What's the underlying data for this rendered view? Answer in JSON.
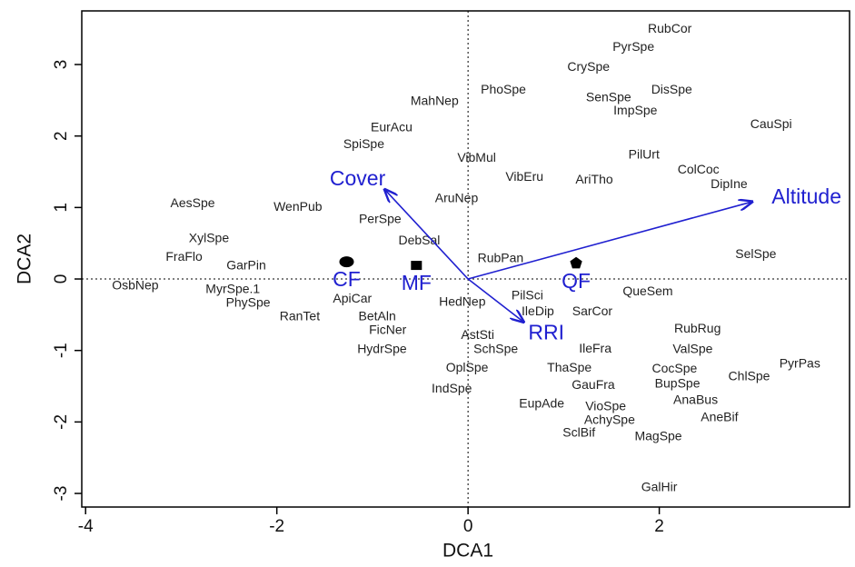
{
  "chart_data": {
    "type": "scatter",
    "xlabel": "DCA1",
    "ylabel": "DCA2",
    "xlim": [
      -4.04,
      3.99
    ],
    "ylim": [
      -3.19,
      3.75
    ],
    "xticks": [
      -4,
      -2,
      0,
      2
    ],
    "yticks": [
      -3,
      -2,
      -1,
      0,
      1,
      2,
      3
    ],
    "reference_lines": true,
    "species": {
      "labels": [
        "RubCor",
        "PyrSpe",
        "CrySpe",
        "PhoSpe",
        "MahNep",
        "DisSpe",
        "SenSpe",
        "ImpSpe",
        "CauSpi",
        "EurAcu",
        "SpiSpe",
        "VibMul",
        "PilUrt",
        "ColCoc",
        "VibEru",
        "AriTho",
        "DipIne",
        "AesSpe",
        "WenPub",
        "AruNep",
        "PerSpe",
        "XylSpe",
        "DebSal",
        "FraFlo",
        "RubPan",
        "SelSpe",
        "GarPin",
        "OsbNep",
        "MyrSpe.1",
        "ApiCar",
        "PilSci",
        "QueSem",
        "HedNep",
        "PhySpe",
        "IleDip",
        "SarCor",
        "RanTet",
        "BetAln",
        "FicNer",
        "RubRug",
        "AstSti",
        "IleFra",
        "HydrSpe",
        "SchSpe",
        "ValSpe",
        "PyrPas",
        "OplSpe",
        "ThaSpe",
        "CocSpe",
        "ChlSpe",
        "BupSpe",
        "GauFra",
        "IndSpe",
        "AnaBus",
        "EupAde",
        "VioSpe",
        "AneBif",
        "AchySpe",
        "SclBif",
        "MagSpe",
        "GalHir"
      ],
      "x": [
        2.11,
        1.73,
        1.26,
        0.37,
        -0.35,
        2.13,
        1.47,
        1.75,
        3.17,
        -0.8,
        -1.09,
        0.09,
        1.84,
        2.41,
        0.59,
        1.32,
        2.73,
        -2.88,
        -1.78,
        -0.12,
        -0.92,
        -2.71,
        -0.51,
        -2.97,
        0.34,
        3.01,
        -2.32,
        -3.48,
        -2.46,
        -1.21,
        0.62,
        1.88,
        -0.06,
        -2.3,
        0.73,
        1.3,
        -1.76,
        -0.95,
        -0.84,
        2.4,
        0.1,
        1.33,
        -0.9,
        0.29,
        2.35,
        3.47,
        -0.01,
        1.06,
        2.16,
        2.94,
        2.19,
        1.31,
        -0.17,
        2.38,
        0.77,
        1.44,
        2.63,
        1.48,
        1.16,
        1.99,
        2.0
      ],
      "y": [
        3.49,
        3.24,
        2.96,
        2.64,
        2.48,
        2.64,
        2.53,
        2.35,
        2.16,
        2.11,
        1.88,
        1.69,
        1.73,
        1.52,
        1.42,
        1.38,
        1.32,
        1.05,
        1.0,
        1.12,
        0.83,
        0.56,
        0.53,
        0.3,
        0.28,
        0.34,
        0.18,
        -0.1,
        -0.15,
        -0.28,
        -0.24,
        -0.18,
        -0.33,
        -0.34,
        -0.46,
        -0.46,
        -0.53,
        -0.53,
        -0.72,
        -0.7,
        -0.79,
        -0.98,
        -0.99,
        -0.99,
        -0.99,
        -1.19,
        -1.25,
        -1.25,
        -1.26,
        -1.37,
        -1.47,
        -1.49,
        -1.54,
        -1.7,
        -1.75,
        -1.79,
        -1.94,
        -1.98,
        -2.16,
        -2.21,
        -2.92
      ]
    },
    "vectors": {
      "color": "#2020d0",
      "labels": [
        "Cover",
        "Altitude",
        "RRI"
      ],
      "x": [
        -0.87,
        2.97,
        0.58
      ],
      "y": [
        1.25,
        1.08,
        -0.6
      ]
    },
    "sites": {
      "color": "#2020d0",
      "marker_color": "#000000",
      "labels": [
        "CF",
        "MF",
        "QF"
      ],
      "shapes": [
        "circle",
        "square",
        "pentagon"
      ],
      "x": [
        -1.27,
        -0.54,
        1.13
      ],
      "y": [
        0.24,
        0.19,
        0.22
      ]
    }
  }
}
